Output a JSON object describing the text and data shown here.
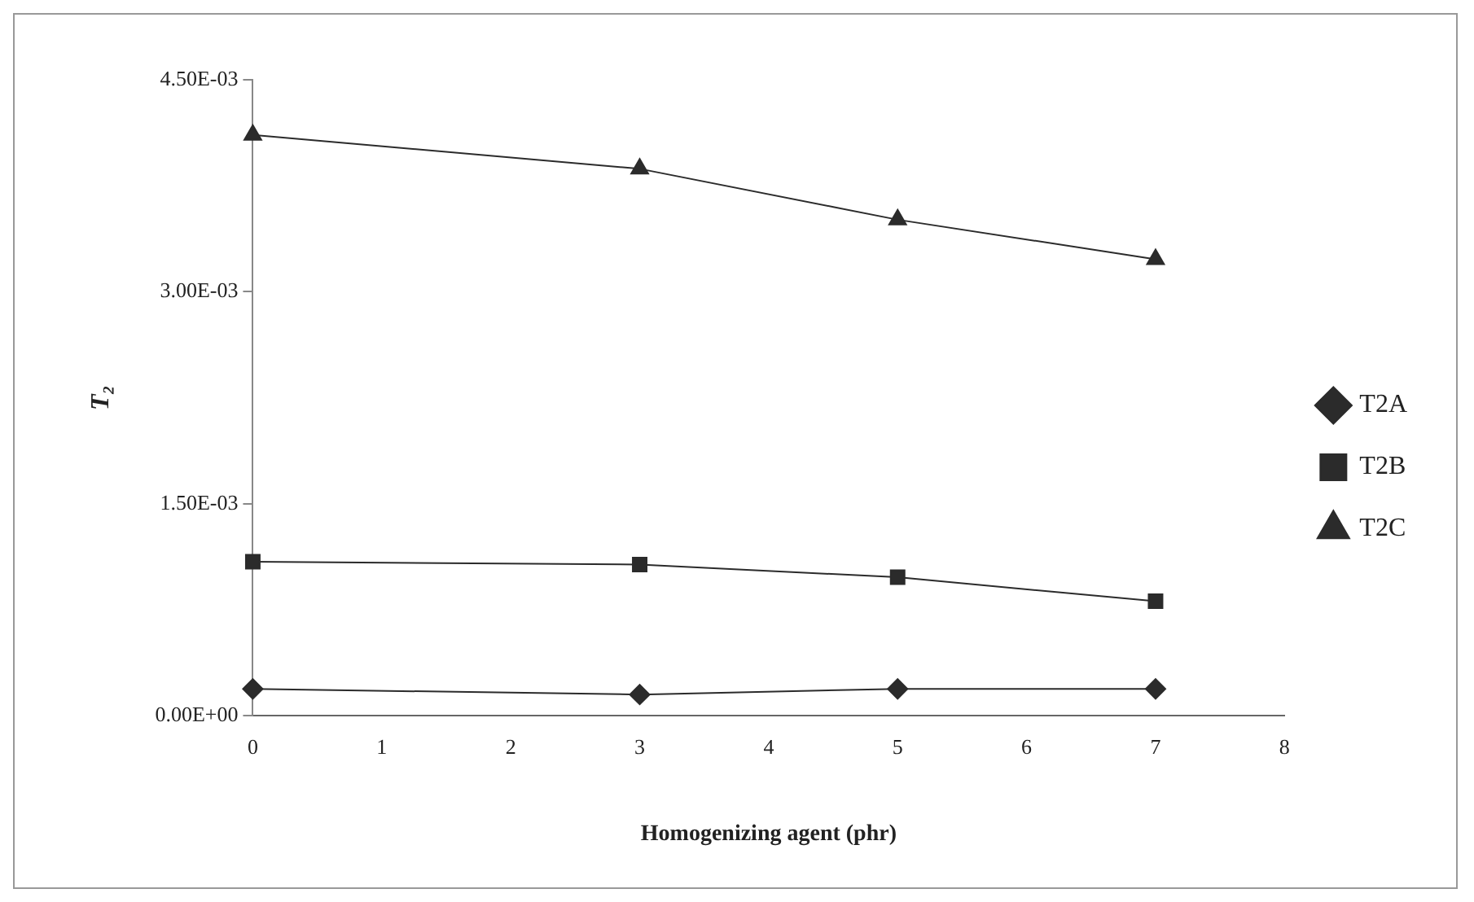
{
  "chart_data": {
    "type": "line",
    "xlabel": "Homogenizing agent (phr)",
    "ylabel": "T₂",
    "x": [
      0,
      3,
      5,
      7
    ],
    "series": [
      {
        "name": "T2A",
        "color": "#2b2b2b",
        "marker": "diamond",
        "values": [
          0.00019,
          0.00015,
          0.00019,
          0.00019
        ]
      },
      {
        "name": "T2B",
        "color": "#2b2b2b",
        "marker": "square",
        "values": [
          0.00109,
          0.00107,
          0.00098,
          0.00081
        ]
      },
      {
        "name": "T2C",
        "color": "#2b2b2b",
        "marker": "triangle",
        "values": [
          0.00411,
          0.00387,
          0.00351,
          0.00323
        ]
      }
    ],
    "xlim": [
      0,
      8
    ],
    "xticks": [
      0,
      1,
      2,
      3,
      4,
      5,
      6,
      7,
      8
    ],
    "ylim": [
      0,
      0.0045
    ],
    "yticks": [
      {
        "value": 0,
        "label": "0.00E+00"
      },
      {
        "value": 0.0015,
        "label": "1.50E-03"
      },
      {
        "value": 0.003,
        "label": "3.00E-03"
      },
      {
        "value": 0.0045,
        "label": "4.50E-03"
      }
    ],
    "grid": false,
    "legend": "right",
    "line_style": "solid"
  }
}
